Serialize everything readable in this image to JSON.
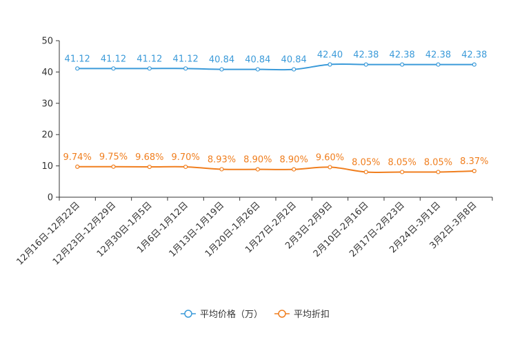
{
  "chart_data": {
    "type": "line",
    "title": "",
    "xlabel": "",
    "ylabel": "",
    "ylim": [
      0,
      50
    ],
    "yticks": [
      0,
      10,
      20,
      30,
      40,
      50
    ],
    "grid": false,
    "legend_position": "bottom-center",
    "categories": [
      "12月16日-12月22日",
      "12月23日-12月29日",
      "12月30日-1月5日",
      "1月6日-1月12日",
      "1月13日-1月19日",
      "1月20日-1月26日",
      "1月27日-2月2日",
      "2月3日-2月9日",
      "2月10日-2月16日",
      "2月17日-2月23日",
      "2月24日-3月1日",
      "3月2日-3月8日"
    ],
    "series": [
      {
        "name": "平均价格（万）",
        "color": "#3a9ad9",
        "values": [
          41.12,
          41.12,
          41.12,
          41.12,
          40.84,
          40.84,
          40.84,
          42.4,
          42.38,
          42.38,
          42.38,
          42.38
        ],
        "labels": [
          "41.12",
          "41.12",
          "41.12",
          "41.12",
          "40.84",
          "40.84",
          "40.84",
          "42.40",
          "42.38",
          "42.38",
          "42.38",
          "42.38"
        ]
      },
      {
        "name": "平均折扣",
        "color": "#f07e1e",
        "values": [
          9.74,
          9.75,
          9.68,
          9.7,
          8.93,
          8.9,
          8.9,
          9.6,
          8.05,
          8.05,
          8.05,
          8.37
        ],
        "labels": [
          "9.74%",
          "9.75%",
          "9.68%",
          "9.70%",
          "8.93%",
          "8.90%",
          "8.90%",
          "9.60%",
          "8.05%",
          "8.05%",
          "8.05%",
          "8.37%"
        ]
      }
    ]
  }
}
